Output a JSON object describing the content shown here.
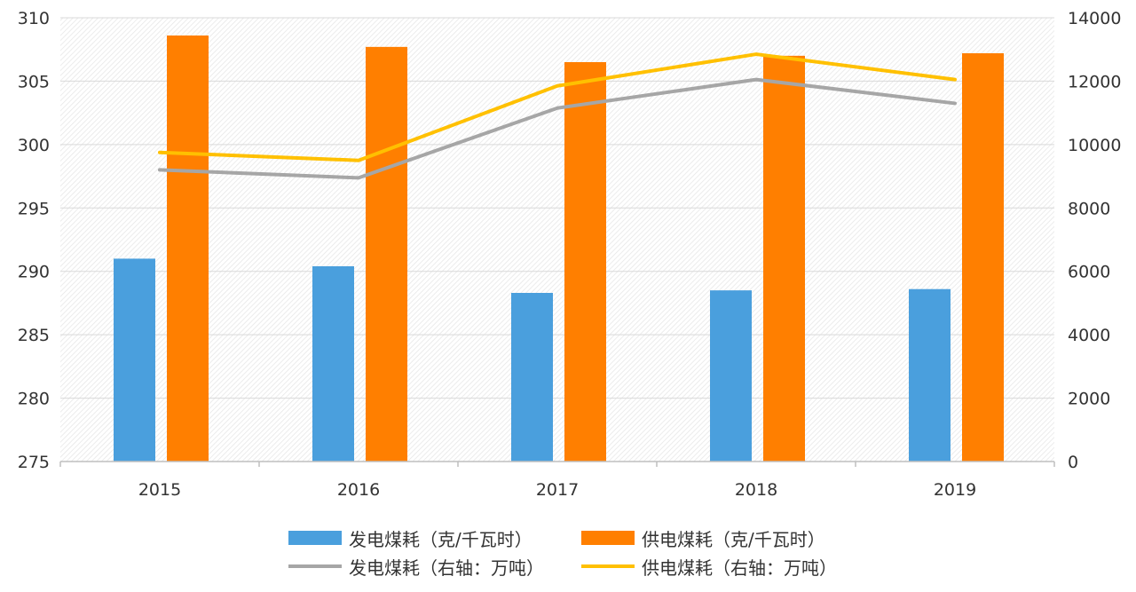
{
  "colors": {
    "gen_bar": "#4a9fdd",
    "sup_bar": "#ff7f00",
    "gen_line": "#a6a6a6",
    "sup_line": "#ffc000",
    "grid": "#d9d9d9",
    "axis": "#bfbfbf"
  },
  "legend": {
    "gen_bar": "发电煤耗（克/千瓦时）",
    "sup_bar": "供电煤耗（克/千瓦时）",
    "gen_line": "发电煤耗（右轴：万吨）",
    "sup_line": "供电煤耗（右轴：万吨）"
  },
  "chart_data": {
    "type": "bar",
    "categories": [
      "2015",
      "2016",
      "2017",
      "2018",
      "2019"
    ],
    "series": [
      {
        "name": "发电煤耗（克/千瓦时）",
        "type": "bar",
        "axis": "left",
        "values": [
          291.0,
          290.4,
          288.3,
          288.5,
          288.6
        ]
      },
      {
        "name": "供电煤耗（克/千瓦时）",
        "type": "bar",
        "axis": "left",
        "values": [
          308.6,
          307.7,
          306.5,
          307.0,
          307.2
        ]
      },
      {
        "name": "发电煤耗（右轴：万吨）",
        "type": "line",
        "axis": "right",
        "values": [
          9200,
          8950,
          11150,
          12050,
          11300
        ]
      },
      {
        "name": "供电煤耗（右轴：万吨）",
        "type": "line",
        "axis": "right",
        "values": [
          9750,
          9500,
          11850,
          12850,
          12050
        ]
      }
    ],
    "y_left": {
      "min": 275,
      "max": 310,
      "ticks": [
        "275",
        "280",
        "285",
        "290",
        "295",
        "300",
        "305",
        "310"
      ]
    },
    "y_right": {
      "min": 0,
      "max": 14000,
      "ticks": [
        "0",
        "2000",
        "4000",
        "6000",
        "8000",
        "10000",
        "12000",
        "14000"
      ]
    },
    "grid": true,
    "legend_position": "bottom"
  }
}
